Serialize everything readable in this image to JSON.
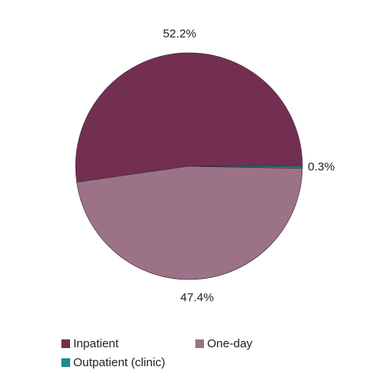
{
  "chart_data": {
    "type": "pie",
    "categories": [
      "Inpatient",
      "One-day",
      "Outpatient (clinic)"
    ],
    "values": [
      52.2,
      47.4,
      0.3
    ],
    "value_labels": [
      "52.2%",
      "47.4%",
      "0.3%"
    ],
    "colors": [
      "#722f52",
      "#9b7286",
      "#1f8a8a"
    ]
  }
}
